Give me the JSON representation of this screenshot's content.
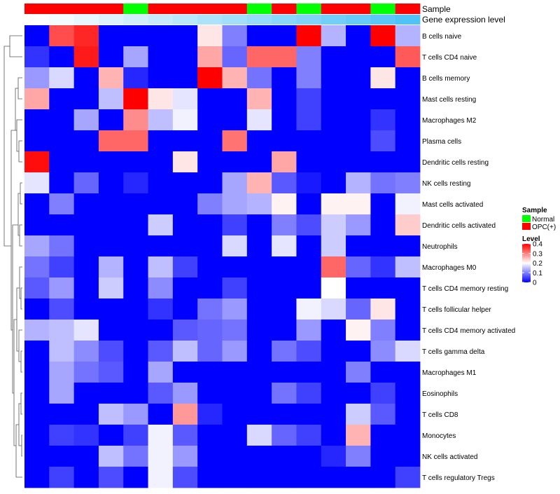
{
  "chart_data": {
    "type": "heatmap",
    "annotations": {
      "sample_label": "Sample",
      "gene_label": "Gene expression level",
      "sample_groups": [
        "OPC(+)",
        "OPC(+)",
        "OPC(+)",
        "OPC(+)",
        "Normal",
        "OPC(+)",
        "OPC(+)",
        "OPC(+)",
        "OPC(+)",
        "Normal",
        "OPC(+)",
        "Normal",
        "OPC(+)",
        "OPC(+)",
        "Normal",
        "OPC(+)"
      ],
      "gene_level": [
        0.0,
        0.07,
        0.13,
        0.2,
        0.27,
        0.33,
        0.4,
        0.47,
        0.53,
        0.6,
        0.67,
        0.73,
        0.8,
        0.87,
        0.93,
        1.0
      ]
    },
    "rows": [
      "B cells naive",
      "T cells CD4 naive",
      "B cells memory",
      "Mast cells resting",
      "Macrophages M2",
      "Plasma cells",
      "Dendritic cells resting",
      "NK cells resting",
      "Mast cells activated",
      "Dendritic cells activated",
      "Neutrophils",
      "Macrophages M0",
      "T cells CD4 memory resting",
      "T cells follicular helper",
      "T cells CD4 memory activated",
      "T cells gamma delta",
      "Macrophages M1",
      "Eosinophils",
      "T cells CD8",
      "Monocytes",
      "NK cells activated",
      "T cells regulatory  Tregs"
    ],
    "matrix": [
      [
        0,
        0.34,
        0.37,
        0,
        0,
        0,
        0,
        0.22,
        0.1,
        0,
        0,
        0.4,
        0.14,
        0,
        0.4,
        0.14
      ],
      [
        0.04,
        0,
        0.38,
        0,
        0.13,
        0,
        0,
        0.27,
        0.08,
        0.32,
        0.32,
        0.1,
        0,
        0,
        0,
        0.33
      ],
      [
        0.12,
        0.17,
        0,
        0.26,
        0.03,
        0,
        0,
        0.4,
        0.26,
        0.09,
        0,
        0.1,
        0,
        0,
        0.22,
        0
      ],
      [
        0.27,
        0,
        0,
        0.15,
        0.4,
        0.22,
        0.18,
        0,
        0,
        0.26,
        0,
        0.05,
        0,
        0,
        0,
        0
      ],
      [
        0,
        0,
        0.13,
        0,
        0.29,
        0.15,
        0.19,
        0,
        0,
        0.18,
        0,
        0.05,
        0,
        0,
        0.04,
        0
      ],
      [
        0,
        0,
        0,
        0.32,
        0.32,
        0,
        0,
        0,
        0.31,
        0,
        0,
        0,
        0,
        0,
        0.06,
        0
      ],
      [
        0.39,
        0,
        0,
        0,
        0,
        0,
        0.22,
        0,
        0,
        0,
        0.27,
        0,
        0,
        0,
        0,
        0
      ],
      [
        0.18,
        0,
        0.08,
        0,
        0.03,
        0,
        0,
        0,
        0.13,
        0.26,
        0.07,
        0.02,
        0,
        0.14,
        0.09,
        0.1
      ],
      [
        0,
        0.1,
        0,
        0,
        0,
        0,
        0,
        0.1,
        0.13,
        0.14,
        0.21,
        0,
        0.21,
        0.21,
        0,
        0.19
      ],
      [
        0,
        0,
        0,
        0,
        0,
        0.16,
        0,
        0,
        0.05,
        0,
        0.1,
        0.06,
        0.16,
        0.12,
        0,
        0.24
      ],
      [
        0.13,
        0.09,
        0,
        0,
        0,
        0,
        0,
        0,
        0.17,
        0,
        0.18,
        0,
        0.16,
        0,
        0,
        0
      ],
      [
        0.09,
        0.05,
        0,
        0.14,
        0,
        0.15,
        0.05,
        0,
        0,
        0,
        0,
        0,
        0.32,
        0.08,
        0.04,
        0.15
      ],
      [
        0.07,
        0.12,
        0,
        0.16,
        0,
        0.11,
        0,
        0,
        0.05,
        0,
        0,
        0,
        0.2,
        0,
        0,
        0
      ],
      [
        0,
        0.06,
        0,
        0,
        0,
        0.04,
        0,
        0.09,
        0.12,
        0,
        0,
        0.19,
        0.17,
        0.08,
        0.22,
        0
      ],
      [
        0.14,
        0.15,
        0.18,
        0,
        0,
        0,
        0.07,
        0.08,
        0.09,
        0,
        0,
        0.12,
        0,
        0.21,
        0.1,
        0
      ],
      [
        0,
        0.15,
        0.11,
        0.06,
        0,
        0.07,
        0.15,
        0.08,
        0.12,
        0,
        0.09,
        0.06,
        0,
        0,
        0.11,
        0.17
      ],
      [
        0,
        0.13,
        0.09,
        0.07,
        0,
        0.13,
        0,
        0,
        0,
        0,
        0,
        0,
        0,
        0.1,
        0,
        0
      ],
      [
        0,
        0.13,
        0,
        0,
        0,
        0.07,
        0.12,
        0,
        0,
        0,
        0.09,
        0.05,
        0,
        0,
        0.05,
        0
      ],
      [
        0,
        0,
        0,
        0.15,
        0.12,
        0,
        0.28,
        0.03,
        0,
        0,
        0,
        0,
        0,
        0.16,
        0.07,
        0
      ],
      [
        0,
        0.05,
        0.04,
        0,
        0.05,
        0.19,
        0.07,
        0,
        0,
        0.17,
        0.08,
        0.05,
        0,
        0.26,
        0,
        0
      ],
      [
        0,
        0,
        0,
        0.15,
        0.09,
        0.19,
        0.12,
        0,
        0,
        0,
        0,
        0,
        0.03,
        0.1,
        0,
        0
      ],
      [
        0,
        0.05,
        0,
        0.06,
        0,
        0.19,
        0.06,
        0,
        0,
        0,
        0,
        0,
        0,
        0,
        0,
        0.05
      ]
    ],
    "legend": {
      "sample_title": "Sample",
      "sample_entries": [
        {
          "label": "Normal",
          "color": "#00ff00"
        },
        {
          "label": "OPC(+)",
          "color": "#ff0000"
        }
      ],
      "level_title": "Level",
      "level_ticks": [
        0.4,
        0.3,
        0.2,
        0.1,
        0
      ],
      "level_range": [
        0,
        0.4
      ]
    },
    "colors": {
      "low": "#0000ff",
      "mid": "#ffffff",
      "high": "#ff0000",
      "gene_low": "#ffffff",
      "gene_high": "#4fc3f7"
    }
  }
}
